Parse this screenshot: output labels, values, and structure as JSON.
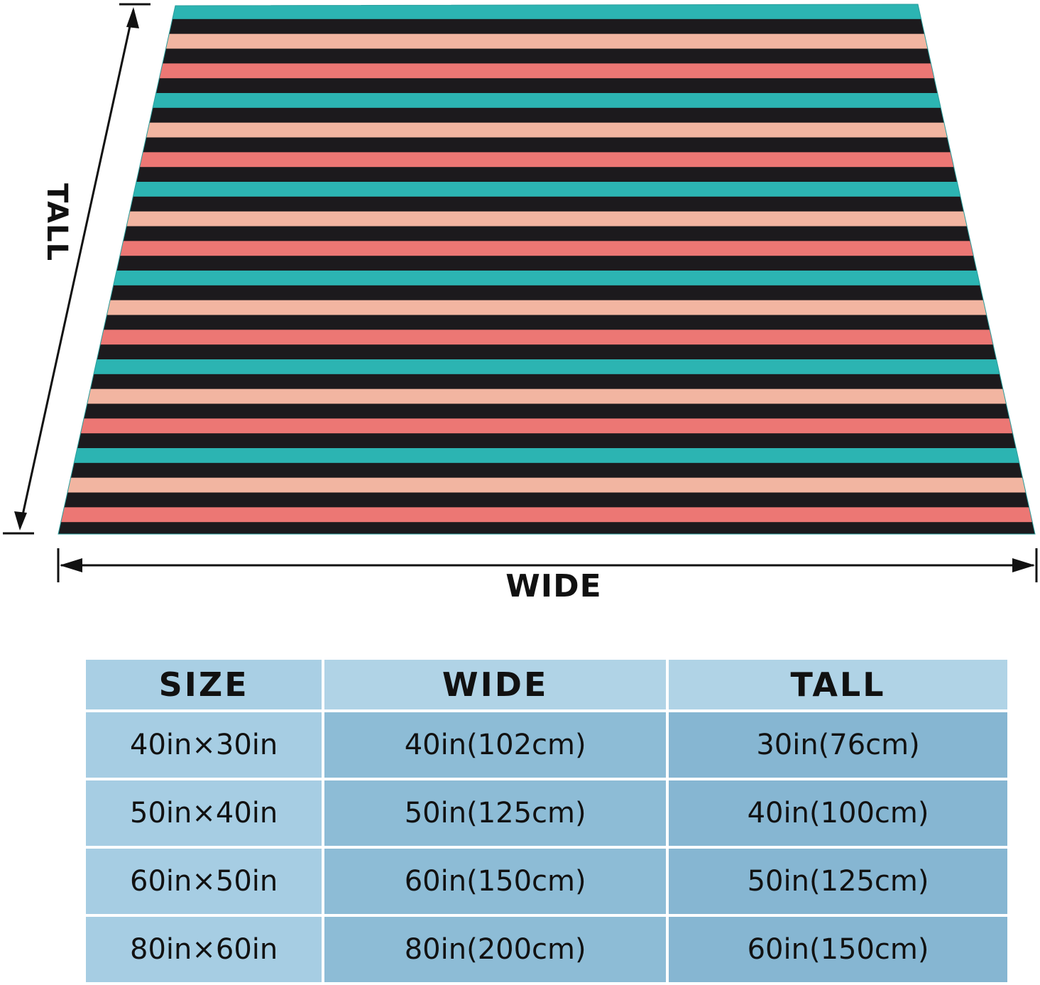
{
  "figure": {
    "wide_label": "WIDE",
    "tall_label": "TALL",
    "stripe_colors": [
      "#2cb4b2",
      "#1c1a1d",
      "#f2b5a1",
      "#1c1a1d",
      "#ec7774",
      "#1c1a1d"
    ],
    "arrow_color": "#111111"
  },
  "table": {
    "headers": {
      "size": "SIZE",
      "wide": "WIDE",
      "tall": "TALL"
    },
    "rows": [
      {
        "size": "40in×30in",
        "wide": "40in(102cm)",
        "tall": "30in(76cm)"
      },
      {
        "size": "50in×40in",
        "wide": "50in(125cm)",
        "tall": "40in(100cm)"
      },
      {
        "size": "60in×50in",
        "wide": "60in(150cm)",
        "tall": "50in(125cm)"
      },
      {
        "size": "80in×60in",
        "wide": "80in(200cm)",
        "tall": "60in(150cm)"
      }
    ]
  }
}
